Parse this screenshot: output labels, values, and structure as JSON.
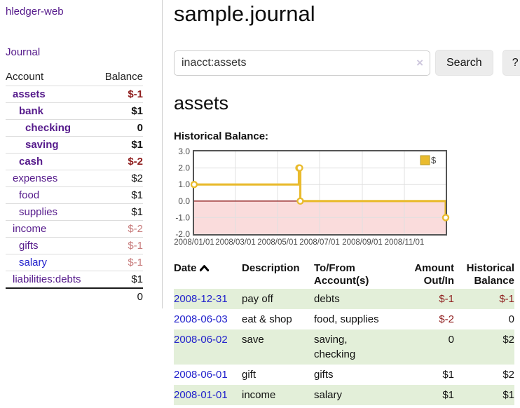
{
  "app": {
    "title": "hledger-web"
  },
  "nav": {
    "journal_label": "Journal"
  },
  "sidebar": {
    "headers": {
      "account": "Account",
      "balance": "Balance"
    },
    "accounts": [
      {
        "name": "assets",
        "balance": "$-1"
      },
      {
        "name": "bank",
        "balance": "$1"
      },
      {
        "name": "checking",
        "balance": "0"
      },
      {
        "name": "saving",
        "balance": "$1"
      },
      {
        "name": "cash",
        "balance": "$-2"
      },
      {
        "name": "expenses",
        "balance": "$2"
      },
      {
        "name": "food",
        "balance": "$1"
      },
      {
        "name": "supplies",
        "balance": "$1"
      },
      {
        "name": "income",
        "balance": "$-2"
      },
      {
        "name": "gifts",
        "balance": "$-1"
      },
      {
        "name": "salary",
        "balance": "$-1"
      },
      {
        "name": "liabilities:debts",
        "balance": "$1"
      }
    ],
    "total": "0"
  },
  "header": {
    "title": "sample.journal"
  },
  "search": {
    "value": "inacct:assets",
    "clear_icon": "×",
    "button_label": "Search",
    "help_label": "?"
  },
  "account_page": {
    "title": "assets"
  },
  "chart_data": {
    "type": "line",
    "title": "Historical Balance:",
    "step": true,
    "x_range": [
      "2008-01-01",
      "2008-12-31"
    ],
    "ylim": [
      -2,
      3
    ],
    "y_ticks": [
      {
        "v": 3,
        "label": "3.0"
      },
      {
        "v": 2,
        "label": "2.0"
      },
      {
        "v": 1,
        "label": "1.0"
      },
      {
        "v": 0,
        "label": "0.0"
      },
      {
        "v": -1,
        "label": "-1.0"
      },
      {
        "v": -2,
        "label": "-2.0"
      }
    ],
    "x_ticks": [
      {
        "date": "2008-01-01",
        "label": "2008/01/01"
      },
      {
        "date": "2008-03-01",
        "label": "2008/03/01"
      },
      {
        "date": "2008-05-01",
        "label": "2008/05/01"
      },
      {
        "date": "2008-07-01",
        "label": "2008/07/01"
      },
      {
        "date": "2008-09-01",
        "label": "2008/09/01"
      },
      {
        "date": "2008-11-01",
        "label": "2008/11/01"
      }
    ],
    "series": [
      {
        "name": "$",
        "color": "#e9bb2e",
        "points": [
          {
            "date": "2008-01-01",
            "value": 1
          },
          {
            "date": "2008-06-01",
            "value": 2
          },
          {
            "date": "2008-06-02",
            "value": 2
          },
          {
            "date": "2008-06-03",
            "value": 0
          },
          {
            "date": "2008-12-31",
            "value": -1
          }
        ]
      }
    ],
    "colors": {
      "grid": "#e0e0e0",
      "border": "#545454",
      "negative_region": "#fadcdc",
      "zero_line": "#8b1414",
      "tick_text": "#4d4d4d"
    },
    "legend_position": "top-right"
  },
  "register": {
    "headers": {
      "date": "Date",
      "description": "Description",
      "accounts": "To/From Account(s)",
      "amount": "Amount Out/In",
      "balance": "Historical Balance"
    },
    "rows": [
      {
        "date": "2008-12-31",
        "description": "pay off",
        "accounts": "debts",
        "amount": "$-1",
        "balance": "$-1"
      },
      {
        "date": "2008-06-03",
        "description": "eat & shop",
        "accounts": "food, supplies",
        "amount": "$-2",
        "balance": "0"
      },
      {
        "date": "2008-06-02",
        "description": "save",
        "accounts": "saving, checking",
        "amount": "0",
        "balance": "$2"
      },
      {
        "date": "2008-06-01",
        "description": "gift",
        "accounts": "gifts",
        "amount": "$1",
        "balance": "$2"
      },
      {
        "date": "2008-01-01",
        "description": "income",
        "accounts": "salary",
        "amount": "$1",
        "balance": "$1"
      }
    ]
  }
}
